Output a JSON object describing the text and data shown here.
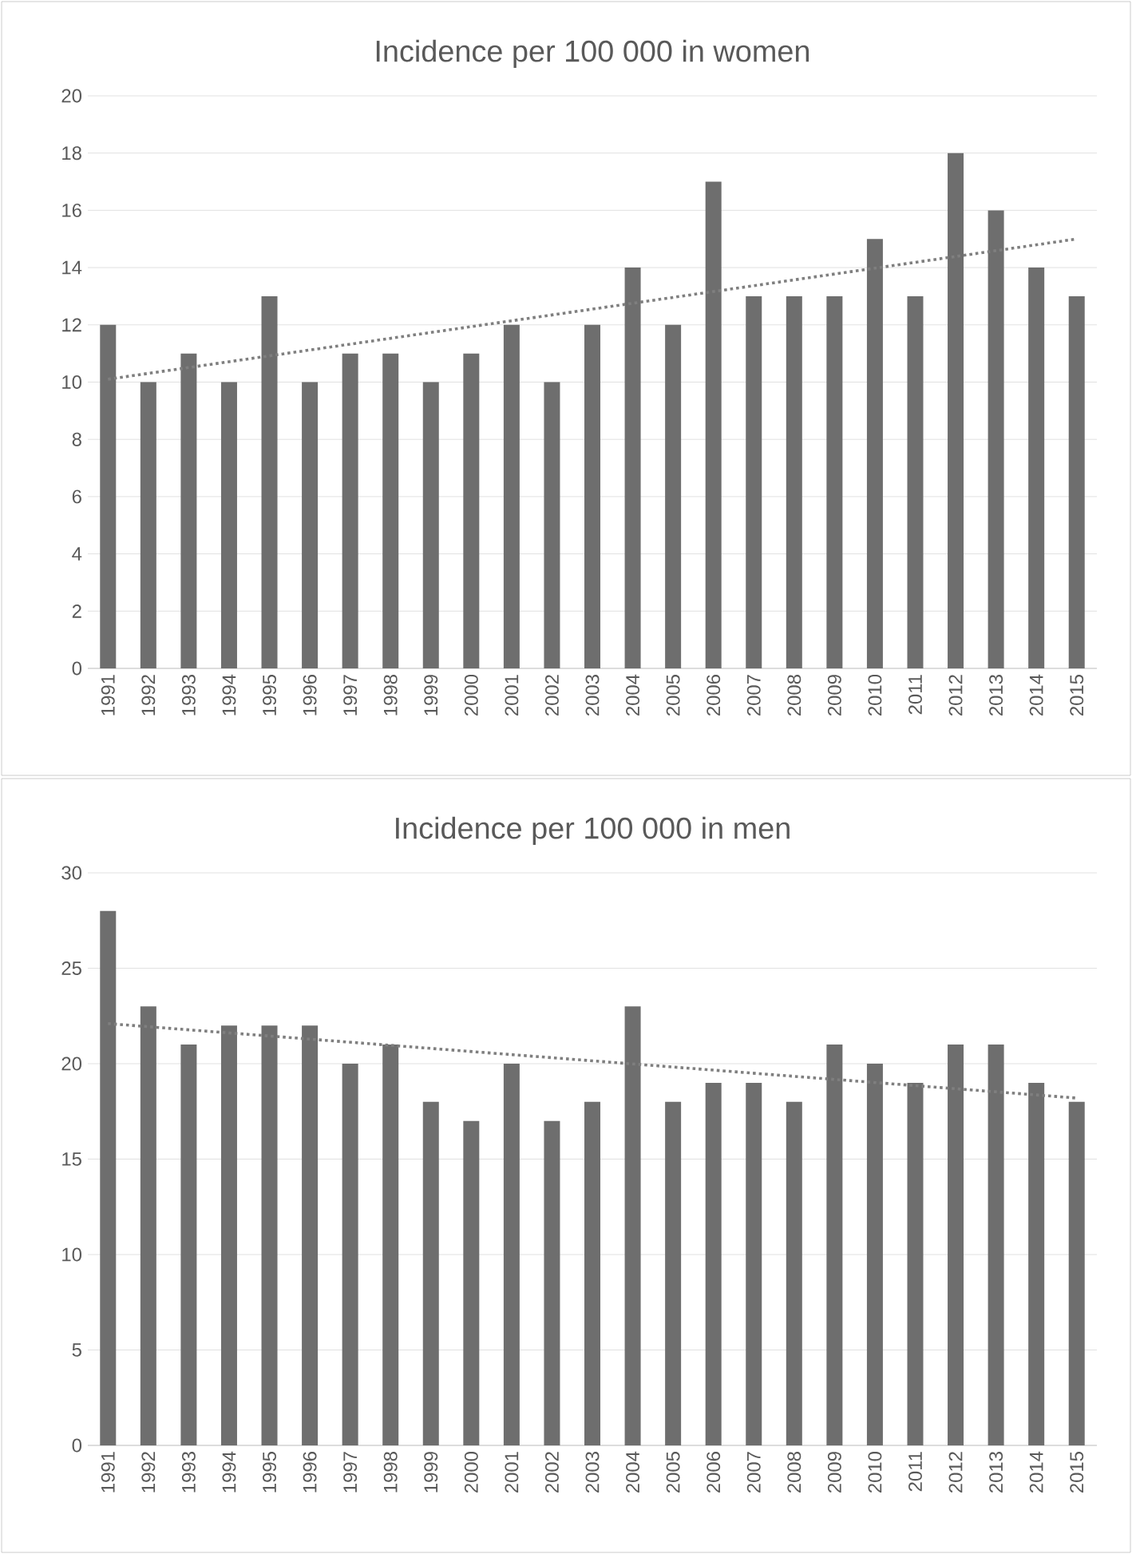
{
  "chart_data": [
    {
      "type": "bar",
      "title": "Incidence per 100 000 in women",
      "categories": [
        "1991",
        "1992",
        "1993",
        "1994",
        "1995",
        "1996",
        "1997",
        "1998",
        "1999",
        "2000",
        "2001",
        "2002",
        "2003",
        "2004",
        "2005",
        "2006",
        "2007",
        "2008",
        "2009",
        "2010",
        "2011",
        "2012",
        "2013",
        "2014",
        "2015"
      ],
      "series": [
        {
          "color": "#6e6e6e",
          "values": [
            12,
            10,
            11,
            10,
            13,
            10,
            11,
            11,
            10,
            11,
            12,
            10,
            12,
            14,
            12,
            17,
            13,
            13,
            13,
            15,
            13,
            18,
            16,
            14,
            13
          ]
        },
        {
          "type": "line",
          "color": "#7f7f7f",
          "line_style": "dotted",
          "values": [
            10.1,
            null,
            null,
            null,
            null,
            null,
            null,
            null,
            null,
            null,
            null,
            null,
            null,
            null,
            null,
            null,
            null,
            null,
            null,
            null,
            null,
            null,
            null,
            null,
            15.0
          ]
        }
      ],
      "ylim": [
        0,
        20
      ],
      "yticks": [
        0,
        2,
        4,
        6,
        8,
        10,
        12,
        14,
        16,
        18,
        20
      ],
      "grid": "y"
    },
    {
      "type": "bar",
      "title": "Incidence per 100 000 in men",
      "categories": [
        "1991",
        "1992",
        "1993",
        "1994",
        "1995",
        "1996",
        "1997",
        "1998",
        "1999",
        "2000",
        "2001",
        "2002",
        "2003",
        "2004",
        "2005",
        "2006",
        "2007",
        "2008",
        "2009",
        "2010",
        "2011",
        "2012",
        "2013",
        "2014",
        "2015"
      ],
      "series": [
        {
          "color": "#6e6e6e",
          "values": [
            28,
            23,
            21,
            22,
            22,
            22,
            20,
            21,
            18,
            17,
            20,
            17,
            18,
            23,
            18,
            19,
            19,
            18,
            21,
            20,
            19,
            21,
            21,
            19,
            18
          ]
        },
        {
          "type": "line",
          "color": "#7f7f7f",
          "line_style": "dotted",
          "values": [
            22.1,
            null,
            null,
            null,
            null,
            null,
            null,
            null,
            null,
            null,
            null,
            null,
            null,
            null,
            null,
            null,
            null,
            null,
            null,
            null,
            null,
            null,
            null,
            null,
            18.2
          ]
        }
      ],
      "ylim": [
        0,
        30
      ],
      "yticks": [
        0,
        5,
        10,
        15,
        20,
        25,
        30
      ],
      "grid": "y"
    }
  ]
}
